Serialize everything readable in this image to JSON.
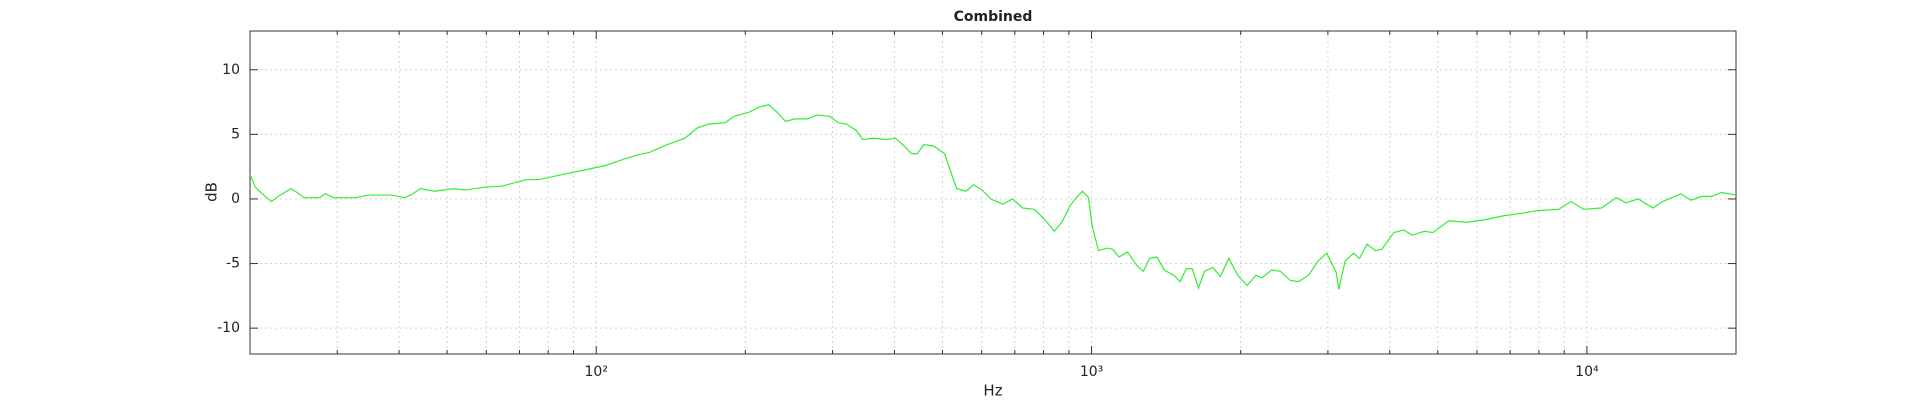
{
  "chart_data": {
    "type": "line",
    "title": "Combined",
    "x_label": "Hz",
    "y_label": "dB",
    "x": [
      20,
      20.5,
      21.3,
      22.1,
      23,
      24.2,
      24.9,
      25.7,
      27.6,
      28.4,
      29.5,
      32.7,
      34.6,
      38.7,
      41,
      42.2,
      44.2,
      47.2,
      51.4,
      54.5,
      59.3,
      64.6,
      72.3,
      76.6,
      85.7,
      96.2,
      104.7,
      114,
      121,
      128,
      139,
      151,
      160,
      169,
      182,
      190,
      203,
      213,
      223,
      232,
      241,
      252,
      267,
      279,
      296,
      308,
      320,
      335,
      345,
      365,
      386,
      402,
      421,
      433,
      445,
      458,
      480,
      505,
      534,
      558,
      578,
      601,
      626,
      662,
      693,
      726,
      767,
      809,
      841,
      871,
      906,
      931,
      959,
      986,
      1003,
      1033,
      1074,
      1104,
      1136,
      1182,
      1237,
      1273,
      1309,
      1355,
      1402,
      1466,
      1509,
      1553,
      1597,
      1644,
      1690,
      1758,
      1820,
      1893,
      1972,
      2061,
      2147,
      2208,
      2311,
      2405,
      2518,
      2618,
      2742,
      2866,
      2985,
      3119,
      3155,
      3251,
      3381,
      3475,
      3597,
      3741,
      3855,
      4076,
      4266,
      4436,
      4699,
      4887,
      5262,
      5730,
      6240,
      6795,
      7396,
      7962,
      8770,
      9290,
      9840,
      10700,
      11460,
      11990,
      12690,
      13600,
      14220,
      15490,
      16220,
      17060,
      17870,
      18680,
      20000
    ],
    "values": [
      1.9,
      0.9,
      0.3,
      -0.2,
      0.3,
      0.8,
      0.5,
      0.1,
      0.1,
      0.4,
      0.1,
      0.1,
      0.3,
      0.3,
      0.1,
      0.3,
      0.8,
      0.6,
      0.8,
      0.7,
      0.9,
      1.0,
      1.5,
      1.5,
      1.9,
      2.3,
      2.6,
      3.1,
      3.4,
      3.6,
      4.2,
      4.7,
      5.5,
      5.8,
      5.9,
      6.4,
      6.7,
      7.1,
      7.3,
      6.7,
      6.0,
      6.2,
      6.2,
      6.5,
      6.4,
      5.9,
      5.8,
      5.3,
      4.6,
      4.7,
      4.6,
      4.7,
      4.0,
      3.5,
      3.5,
      4.2,
      4.1,
      3.5,
      0.8,
      0.6,
      1.1,
      0.7,
      0.0,
      -0.4,
      0.0,
      -0.7,
      -0.8,
      -1.7,
      -2.5,
      -1.8,
      -0.5,
      0.1,
      0.6,
      0.1,
      -2.1,
      -4.0,
      -3.8,
      -3.9,
      -4.5,
      -4.1,
      -5.2,
      -5.6,
      -4.6,
      -4.5,
      -5.5,
      -5.9,
      -6.4,
      -5.4,
      -5.4,
      -6.9,
      -5.6,
      -5.3,
      -6.0,
      -4.6,
      -5.9,
      -6.7,
      -5.9,
      -6.1,
      -5.5,
      -5.6,
      -6.3,
      -6.4,
      -5.9,
      -4.8,
      -4.2,
      -5.7,
      -7.0,
      -4.8,
      -4.2,
      -4.6,
      -3.5,
      -4.0,
      -3.9,
      -2.6,
      -2.4,
      -2.8,
      -2.5,
      -2.6,
      -1.7,
      -1.8,
      -1.6,
      -1.3,
      -1.1,
      -0.9,
      -0.8,
      -0.2,
      -0.8,
      -0.7,
      0.1,
      -0.3,
      0.0,
      -0.7,
      -0.2,
      0.4,
      -0.1,
      0.2,
      0.2,
      0.5,
      0.3
    ],
    "color": "#33ee33",
    "xscale": "log",
    "grid": true,
    "xlim": [
      20,
      20000
    ],
    "ylim": [
      -12,
      13
    ],
    "xticks": [
      {
        "value": 100,
        "label": "10²"
      },
      {
        "value": 1000,
        "label": "10³"
      },
      {
        "value": 10000,
        "label": "10⁴"
      }
    ],
    "xminorticks": [
      20,
      30,
      40,
      50,
      60,
      70,
      80,
      90,
      200,
      300,
      400,
      500,
      600,
      700,
      800,
      900,
      2000,
      3000,
      4000,
      5000,
      6000,
      7000,
      8000,
      9000,
      20000
    ],
    "yticks": [
      -10,
      -5,
      0,
      5,
      10
    ]
  }
}
